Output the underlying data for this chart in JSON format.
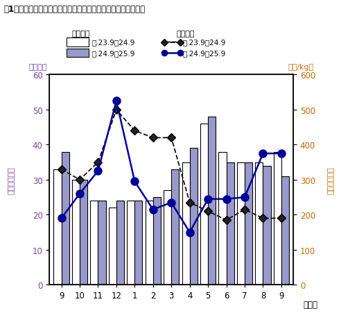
{
  "title": "図1　きゅうりの卸売数量及び卸売価格の推移（主要卸売市場）",
  "months": [
    "9",
    "10",
    "11",
    "12",
    "1",
    "2",
    "3",
    "4",
    "5",
    "6",
    "7",
    "8",
    "9"
  ],
  "xlabel": "（月）",
  "ylabel_left": "（千ｔ）",
  "ylabel_right": "（円/kg）",
  "ylim_left": [
    0,
    60
  ],
  "ylim_right": [
    0,
    600
  ],
  "yticks_left": [
    0,
    10,
    20,
    30,
    40,
    50,
    60
  ],
  "yticks_right": [
    0,
    100,
    200,
    300,
    400,
    500,
    600
  ],
  "bar_white": [
    33,
    30,
    24,
    22,
    24,
    24,
    27,
    35,
    46,
    38,
    35,
    35,
    38
  ],
  "bar_blue": [
    38,
    30,
    24,
    24,
    24,
    25,
    33,
    39,
    48,
    35,
    35,
    34,
    31
  ],
  "line_black_dashed": [
    330,
    300,
    350,
    500,
    440,
    420,
    420,
    235,
    210,
    185,
    215,
    190,
    190
  ],
  "line_blue_solid": [
    190,
    260,
    325,
    525,
    295,
    215,
    235,
    150,
    245,
    245,
    250,
    375,
    375
  ],
  "bar_white_color": "#ffffff",
  "bar_blue_color": "#9999cc",
  "bar_edge_color": "#000000",
  "line_black_color": "#111111",
  "line_blue_color": "#000099",
  "background_color": "#ffffff",
  "left_tick_color": "#7744aa",
  "right_tick_color": "#cc6600",
  "legend_vol_label": "卸売数量",
  "legend_price_label": "卸売価格",
  "legend_vol_1": "平.23.9～24.9",
  "legend_vol_2": "平.24.9～25.9",
  "legend_price_1": "平.23.9～24.9",
  "legend_price_2": "平.24.9～25.9",
  "left_side_label": "（卸売数量）",
  "right_side_label": "（卸売価格）"
}
